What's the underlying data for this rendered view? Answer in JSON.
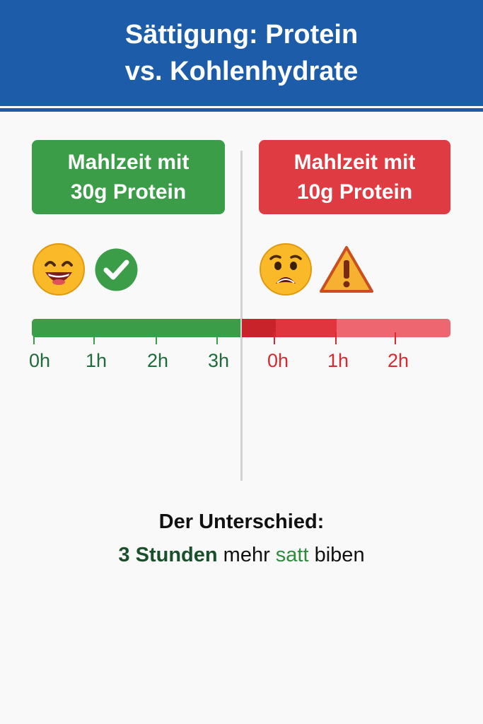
{
  "title": {
    "line1": "Sättigung: Protein",
    "line2": "vs. Kohlenhydrate"
  },
  "left": {
    "label_line1": "Mahlzeit mit",
    "label_line2": "30g Protein",
    "emoji": "happy-face-icon",
    "badge": "checkmark-icon",
    "ticks": [
      "0h",
      "1h",
      "2h",
      "3h"
    ],
    "color": "#3b9d48"
  },
  "right": {
    "label_line1": "Mahlzeit mit",
    "label_line2": "10g Protein",
    "emoji": "worried-face-icon",
    "badge": "warning-icon",
    "ticks": [
      "0h",
      "1h",
      "2h"
    ],
    "color": "#df3b43"
  },
  "summary": {
    "title": "Der Unterschied:",
    "strong": "3 Stunden",
    "mid": "mehr",
    "green": "satt",
    "tail": "biben"
  }
}
